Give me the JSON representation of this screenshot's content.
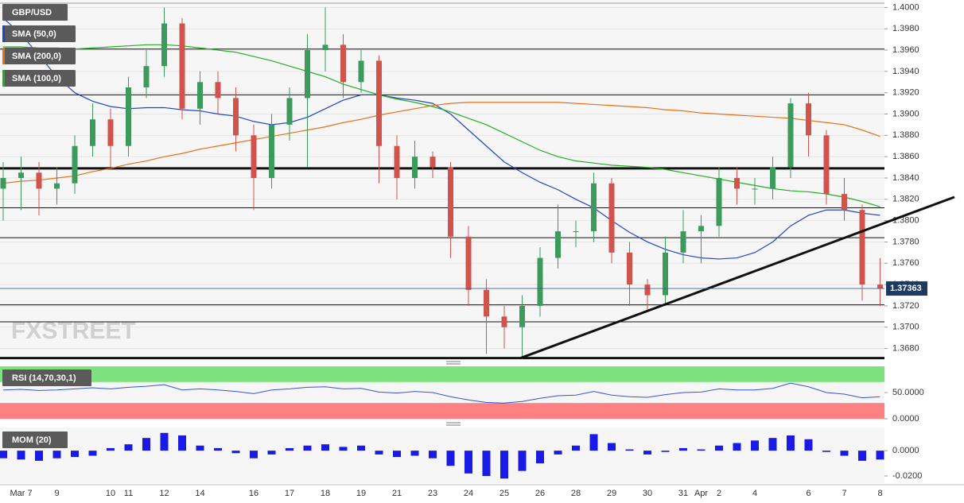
{
  "chart_data": [
    {
      "type": "candlestick",
      "title": "GBP/USD",
      "watermark": "FXSTREET",
      "categories": [
        null,
        "Mar 7",
        null,
        "9",
        null,
        null,
        "10",
        "11",
        null,
        "12",
        null,
        "14",
        null,
        null,
        "16",
        null,
        "17",
        null,
        "18",
        null,
        "19",
        null,
        "21",
        null,
        "23",
        null,
        "24",
        null,
        "25",
        null,
        "26",
        null,
        "28",
        null,
        "29",
        null,
        "30",
        null,
        "31",
        "Apr",
        "2",
        null,
        "4",
        null,
        null,
        "6",
        null,
        "7",
        null,
        "8"
      ],
      "open": [
        1.383,
        1.384,
        1.3845,
        1.383,
        1.3835,
        1.387,
        1.3895,
        1.387,
        1.3925,
        1.3945,
        1.3985,
        1.3905,
        1.393,
        1.3915,
        1.388,
        1.384,
        1.389,
        1.3915,
        1.396,
        1.3965,
        1.393,
        1.395,
        1.387,
        1.384,
        1.386,
        1.385,
        1.3785,
        1.3735,
        1.371,
        1.37,
        1.372,
        1.3765,
        1.379,
        1.379,
        1.3835,
        1.377,
        1.374,
        1.373,
        1.377,
        1.379,
        1.3795,
        1.384,
        1.383,
        1.383,
        1.385,
        1.391,
        1.388,
        1.3825,
        1.381,
        1.374
      ],
      "high": [
        1.3855,
        1.386,
        1.3855,
        1.385,
        1.388,
        1.391,
        1.3905,
        1.3935,
        1.396,
        1.4,
        1.399,
        1.394,
        1.394,
        1.3925,
        1.389,
        1.39,
        1.3925,
        1.3975,
        1.4,
        1.3975,
        1.396,
        1.3955,
        1.388,
        1.3875,
        1.3865,
        1.3855,
        1.3795,
        1.3745,
        1.372,
        1.373,
        1.3775,
        1.3815,
        1.38,
        1.3845,
        1.384,
        1.378,
        1.3745,
        1.3785,
        1.381,
        1.3805,
        1.385,
        1.385,
        1.384,
        1.386,
        1.3915,
        1.392,
        1.3885,
        1.384,
        1.3815,
        1.3765
      ],
      "low": [
        1.38,
        1.381,
        1.3805,
        1.3815,
        1.3825,
        1.386,
        1.385,
        1.386,
        1.3915,
        1.3935,
        1.3895,
        1.389,
        1.39,
        1.3865,
        1.381,
        1.383,
        1.3875,
        1.385,
        1.394,
        1.3915,
        1.392,
        1.3835,
        1.382,
        1.383,
        1.384,
        1.3765,
        1.372,
        1.3675,
        1.368,
        1.367,
        1.371,
        1.3755,
        1.3775,
        1.378,
        1.376,
        1.372,
        1.3715,
        1.372,
        1.376,
        1.376,
        1.3785,
        1.3815,
        1.3815,
        1.382,
        1.384,
        1.386,
        1.3815,
        1.38,
        1.3725,
        1.372
      ],
      "close": [
        1.384,
        1.3845,
        1.383,
        1.3835,
        1.387,
        1.3895,
        1.387,
        1.3925,
        1.3945,
        1.3985,
        1.3905,
        1.393,
        1.3915,
        1.388,
        1.384,
        1.389,
        1.3915,
        1.396,
        1.3965,
        1.393,
        1.395,
        1.387,
        1.384,
        1.386,
        1.385,
        1.3785,
        1.3735,
        1.371,
        1.37,
        1.372,
        1.3765,
        1.379,
        1.379,
        1.3835,
        1.377,
        1.374,
        1.373,
        1.377,
        1.379,
        1.3795,
        1.384,
        1.383,
        1.383,
        1.385,
        1.391,
        1.388,
        1.3825,
        1.381,
        1.374,
        1.3736
      ],
      "up_color": "#3d9a5d",
      "down_color": "#d0544c",
      "series": [
        {
          "name": "SMA (50,0)",
          "color": "#2244cc",
          "values": [
            1.399,
            1.3975,
            1.3955,
            1.3935,
            1.392,
            1.3912,
            1.3907,
            1.3905,
            1.3906,
            1.3906,
            1.3904,
            1.3903,
            1.39,
            1.3898,
            1.3893,
            1.389,
            1.3892,
            1.3897,
            1.3905,
            1.3913,
            1.3918,
            1.3918,
            1.3915,
            1.3913,
            1.391,
            1.39,
            1.3885,
            1.387,
            1.3855,
            1.3845,
            1.3836,
            1.3829,
            1.382,
            1.3812,
            1.38,
            1.3789,
            1.378,
            1.3773,
            1.3768,
            1.3765,
            1.3764,
            1.3765,
            1.377,
            1.378,
            1.3795,
            1.3805,
            1.381,
            1.381,
            1.3807,
            1.3805
          ]
        },
        {
          "name": "SMA (200,0)",
          "color": "#e8701a",
          "values": [
            1.3835,
            1.3837,
            1.3838,
            1.384,
            1.3842,
            1.3846,
            1.3849,
            1.3853,
            1.3856,
            1.386,
            1.3863,
            1.3867,
            1.387,
            1.3873,
            1.3876,
            1.3879,
            1.3882,
            1.3885,
            1.3888,
            1.3892,
            1.3895,
            1.3899,
            1.3902,
            1.3905,
            1.3908,
            1.391,
            1.3911,
            1.3911,
            1.3911,
            1.3911,
            1.3911,
            1.3911,
            1.391,
            1.3909,
            1.3908,
            1.3907,
            1.3906,
            1.3904,
            1.3903,
            1.3901,
            1.39,
            1.3899,
            1.3898,
            1.3897,
            1.3896,
            1.3894,
            1.3892,
            1.389,
            1.3885,
            1.3879
          ]
        },
        {
          "name": "SMA (100,0)",
          "color": "#22b022",
          "values": [
            1.3963,
            1.3963,
            1.3962,
            1.3962,
            1.3961,
            1.3962,
            1.3963,
            1.3964,
            1.3965,
            1.3965,
            1.3964,
            1.3962,
            1.396,
            1.3958,
            1.3954,
            1.395,
            1.3945,
            1.394,
            1.3935,
            1.3928,
            1.3923,
            1.3918,
            1.3914,
            1.3911,
            1.3907,
            1.3902,
            1.3896,
            1.389,
            1.3882,
            1.3874,
            1.3866,
            1.386,
            1.3856,
            1.3854,
            1.3852,
            1.3851,
            1.385,
            1.3848,
            1.3845,
            1.3842,
            1.3839,
            1.3836,
            1.3833,
            1.383,
            1.3828,
            1.3827,
            1.3825,
            1.3822,
            1.3818,
            1.3813
          ]
        }
      ],
      "ylim": [
        1.367,
        1.4007
      ],
      "yticks": [
        {
          "value": 1.4,
          "label": "1.4000"
        },
        {
          "value": 1.398,
          "label": "1.3980"
        },
        {
          "value": 1.396,
          "label": "1.3960"
        },
        {
          "value": 1.394,
          "label": "1.3940"
        },
        {
          "value": 1.392,
          "label": "1.3920"
        },
        {
          "value": 1.39,
          "label": "1.3900"
        },
        {
          "value": 1.388,
          "label": "1.3880"
        },
        {
          "value": 1.386,
          "label": "1.3860"
        },
        {
          "value": 1.384,
          "label": "1.3840"
        },
        {
          "value": 1.382,
          "label": "1.3820"
        },
        {
          "value": 1.38,
          "label": "1.3800"
        },
        {
          "value": 1.378,
          "label": "1.3780"
        },
        {
          "value": 1.376,
          "label": "1.3760"
        },
        {
          "value": 1.374,
          "label": "1.3740"
        },
        {
          "value": 1.372,
          "label": "1.3720"
        },
        {
          "value": 1.37,
          "label": "1.3700"
        },
        {
          "value": 1.368,
          "label": "1.3680"
        }
      ],
      "grid": true,
      "levels": [
        1.3961,
        1.3918,
        1.3812,
        1.3784,
        1.3721,
        1.3705
      ],
      "major_levels": [
        1.3849,
        1.3671
      ],
      "trendline": {
        "start": {
          "x": 28.9,
          "y": 1.3671
        },
        "end": {
          "x": 49.5,
          "y": 1.3798
        }
      },
      "last_value": 1.37363,
      "last_color": "#1f3a60"
    },
    {
      "type": "line",
      "title": "RSI (14,70,30,1)",
      "color": "#3355dd",
      "values": [
        55,
        56,
        54,
        55,
        57,
        59,
        57,
        60,
        62,
        65,
        55,
        57,
        55,
        52,
        48,
        55,
        57,
        60,
        61,
        57,
        58,
        51,
        49,
        52,
        50,
        42,
        36,
        31,
        30,
        33,
        39,
        44,
        45,
        52,
        45,
        42,
        41,
        46,
        50,
        51,
        57,
        55,
        55,
        58,
        68,
        61,
        50,
        47,
        40,
        42
      ],
      "ylim": [
        0,
        100
      ],
      "yticks": [
        {
          "value": 0,
          "label": "0.0000"
        },
        {
          "value": 50,
          "label": "50.0000"
        }
      ],
      "bands": [
        {
          "from": 70,
          "to": 100,
          "color": "#7ee27e"
        },
        {
          "from": 0,
          "to": 30,
          "color": "#ff8080"
        }
      ]
    },
    {
      "type": "bar",
      "title": "MOM (20)",
      "color": "#1a1ae6",
      "values": [
        -0.006,
        -0.007,
        -0.008,
        -0.006,
        -0.005,
        -0.004,
        0.002,
        0.005,
        0.01,
        0.014,
        0.012,
        0.004,
        0.002,
        -0.002,
        -0.006,
        -0.003,
        0.002,
        0.004,
        0.005,
        0.003,
        0.004,
        -0.003,
        -0.005,
        -0.004,
        -0.006,
        -0.012,
        -0.018,
        -0.02,
        -0.022,
        -0.016,
        -0.01,
        -0.003,
        0.004,
        0.013,
        0.006,
        0.001,
        -0.003,
        -0.001,
        0.002,
        0.001,
        0.004,
        0.006,
        0.008,
        0.01,
        0.012,
        0.009,
        -0.001,
        -0.004,
        -0.008,
        -0.007
      ],
      "ylim": [
        -0.025,
        0.017
      ],
      "yticks": [
        {
          "value": 0,
          "label": "0.0000"
        },
        {
          "value": -0.02,
          "label": "-0.0200"
        }
      ]
    }
  ]
}
